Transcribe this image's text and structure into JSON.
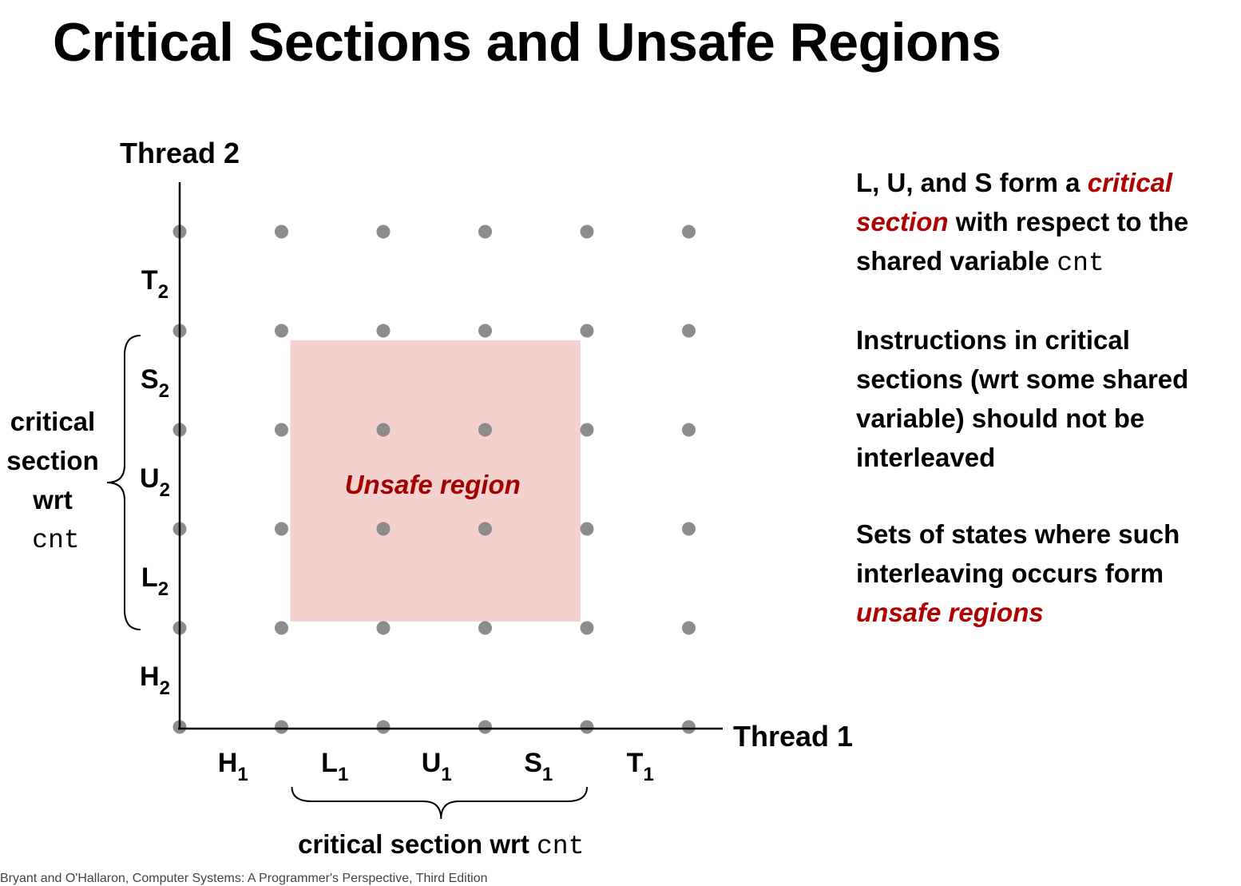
{
  "title": "Critical Sections and Unsafe Regions",
  "axes": {
    "y_label": "Thread 2",
    "x_label": "Thread 1"
  },
  "thread1_steps": [
    {
      "letter": "H",
      "sub": "1"
    },
    {
      "letter": "L",
      "sub": "1"
    },
    {
      "letter": "U",
      "sub": "1"
    },
    {
      "letter": "S",
      "sub": "1"
    },
    {
      "letter": "T",
      "sub": "1"
    }
  ],
  "thread2_steps": [
    {
      "letter": "H",
      "sub": "2"
    },
    {
      "letter": "L",
      "sub": "2"
    },
    {
      "letter": "U",
      "sub": "2"
    },
    {
      "letter": "S",
      "sub": "2"
    },
    {
      "letter": "T",
      "sub": "2"
    }
  ],
  "unsafe_region": {
    "label": "Unsafe region",
    "thread1_from": "L1",
    "thread1_to": "S1",
    "thread2_from": "L2",
    "thread2_to": "S2",
    "fill_color": "#f4d0cf",
    "label_color": "#a00000"
  },
  "left_brace": {
    "lines": [
      "critical",
      "section",
      "wrt"
    ],
    "code": "cnt"
  },
  "bottom_brace": {
    "text": "critical section wrt ",
    "code": "cnt"
  },
  "notes": {
    "p1": {
      "a": "L, U, and S form a ",
      "em1": "critical",
      "em2": "section",
      "b": " with respect to the shared variable ",
      "code": "cnt"
    },
    "p2": "Instructions in critical sections (wrt some shared variable) should not be interleaved",
    "p3": {
      "a": "Sets of states where such interleaving occurs form ",
      "em": "unsafe regions"
    }
  },
  "footer": "Bryant and O'Hallaron, Computer Systems: A Programmer's Perspective, Third Edition",
  "colors": {
    "point": "#8c8c8c",
    "axis": "#000000",
    "accent": "#b00000"
  }
}
